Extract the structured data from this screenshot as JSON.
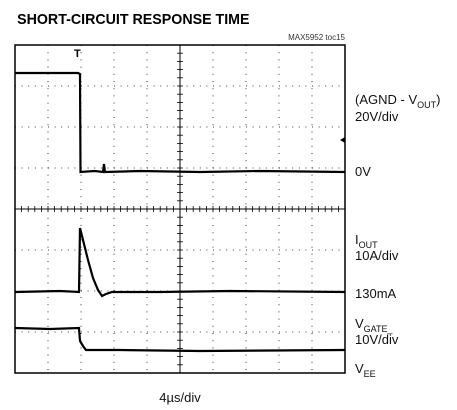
{
  "title": "SHORT-CIRCUIT RESPONSE TIME",
  "tag": "MAX5952 toc15",
  "channel_labels": [
    {
      "main": "(AGND - V",
      "sub": "OUT",
      "after": ")"
    },
    {
      "main": "20V/div"
    },
    {
      "main": "0V"
    },
    {
      "main": "I",
      "sub": "OUT"
    },
    {
      "main": "10A/div"
    },
    {
      "main": "130mA"
    },
    {
      "main": "V",
      "sub": "GATE_"
    },
    {
      "main": "10V/div"
    },
    {
      "main": "V",
      "sub": "EE"
    }
  ],
  "time_scale": "4µs/div"
}
